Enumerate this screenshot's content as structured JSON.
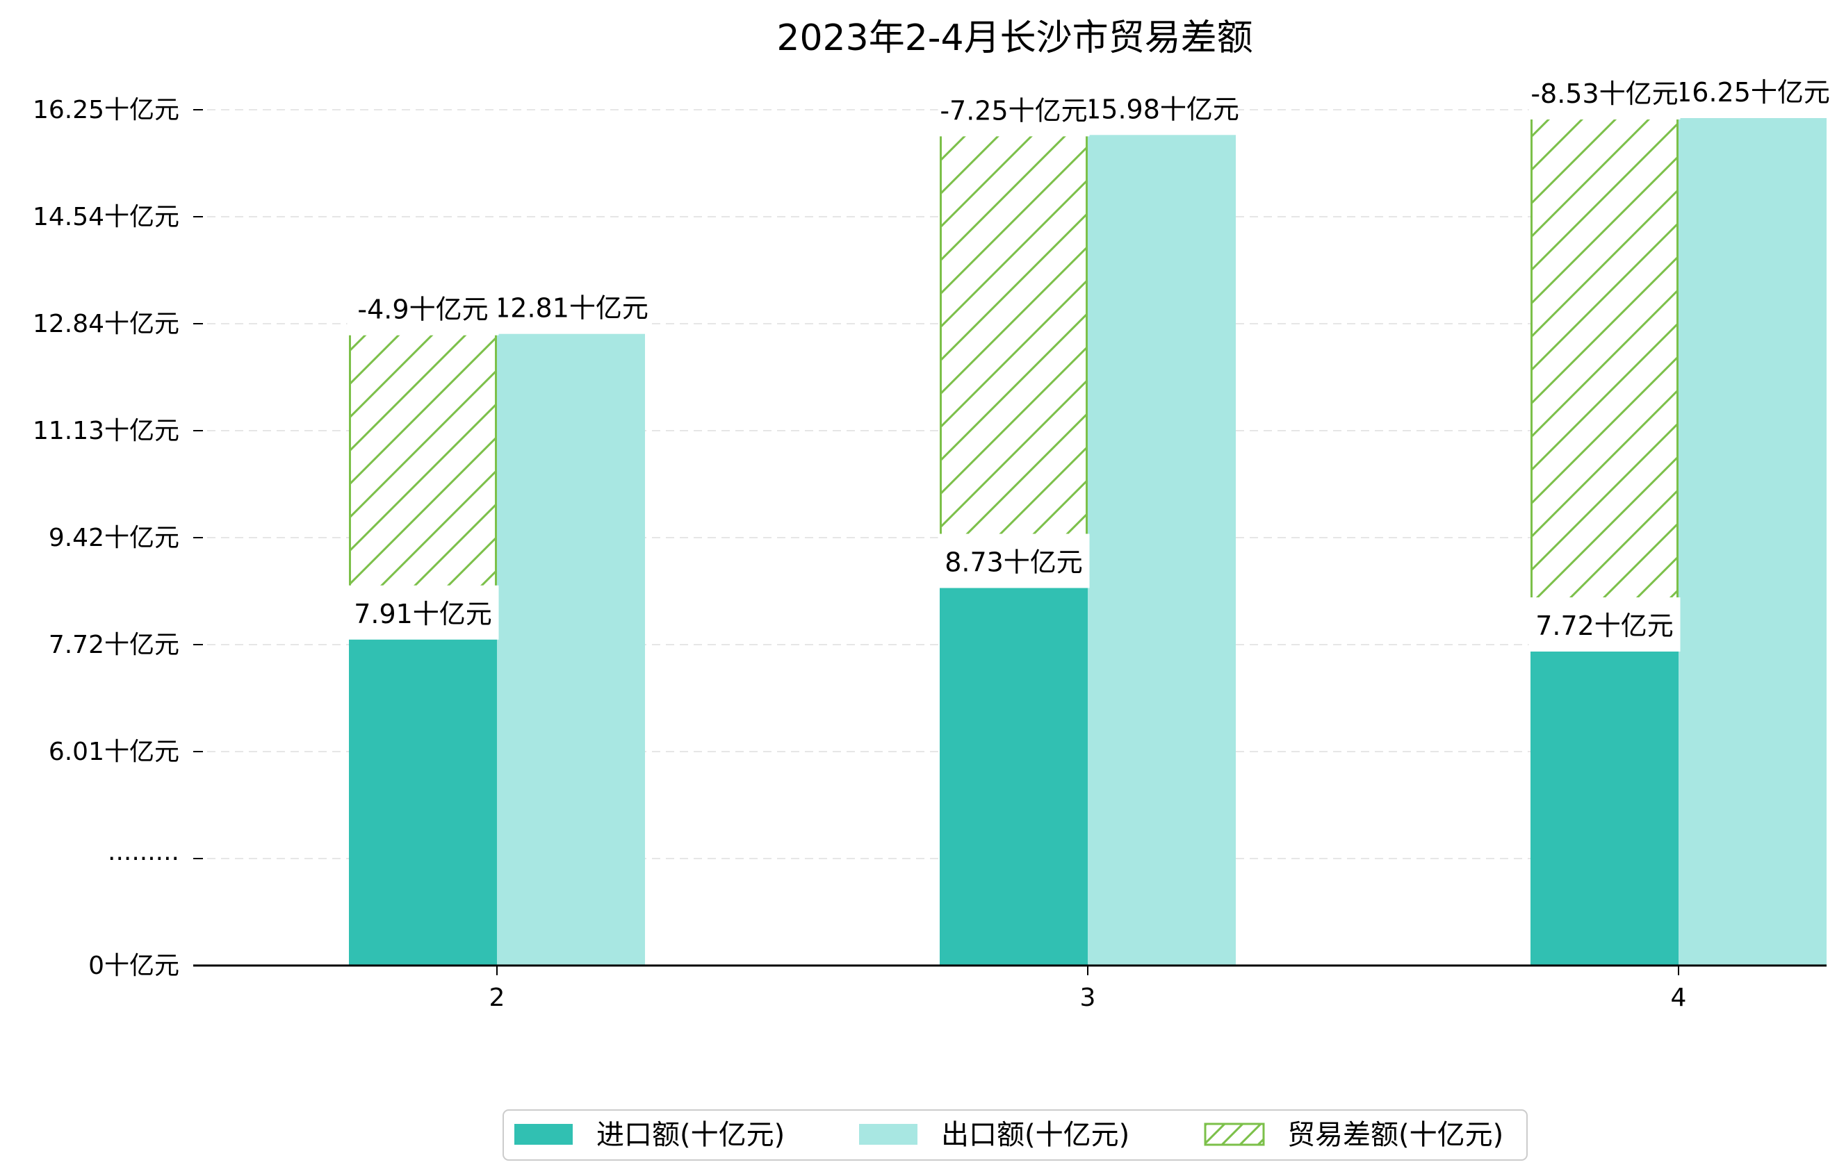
{
  "chart_data": {
    "type": "bar",
    "title": "2023年2-4月长沙市贸易差额",
    "xlabel": "",
    "ylabel": "",
    "categories": [
      "2",
      "3",
      "4"
    ],
    "series": [
      {
        "name": "进口额(十亿元)",
        "values": [
          7.91,
          8.73,
          7.72
        ],
        "labels": [
          "7.91十亿元",
          "8.73十亿元",
          "7.72十亿元"
        ],
        "color": "#31c0b2"
      },
      {
        "name": "出口额(十亿元)",
        "values": [
          12.81,
          15.98,
          16.25
        ],
        "labels": [
          "12.81十亿元",
          "15.98十亿元",
          "16.25十亿元"
        ],
        "color": "#a8e7e2"
      },
      {
        "name": "贸易差额(十亿元)",
        "values": [
          -4.9,
          -7.25,
          -8.53
        ],
        "labels": [
          "-4.9十亿元",
          "-7.25十亿元",
          "-8.53十亿元"
        ],
        "color": "#7cc04a",
        "pattern": "hatch"
      }
    ],
    "y_ticks": [
      {
        "label": "0十亿元",
        "value": 0
      },
      {
        "label": "·········",
        "value": null
      },
      {
        "label": "6.01十亿元",
        "value": 6.01
      },
      {
        "label": "7.72十亿元",
        "value": 7.72
      },
      {
        "label": "9.42十亿元",
        "value": 9.42
      },
      {
        "label": "11.13十亿元",
        "value": 11.13
      },
      {
        "label": "12.84十亿元",
        "value": 12.84
      },
      {
        "label": "14.54十亿元",
        "value": 14.54
      },
      {
        "label": "16.25十亿元",
        "value": 16.25
      }
    ],
    "y_axis_break": true,
    "grid": "horizontal-dashed",
    "legend_position": "bottom-center"
  }
}
